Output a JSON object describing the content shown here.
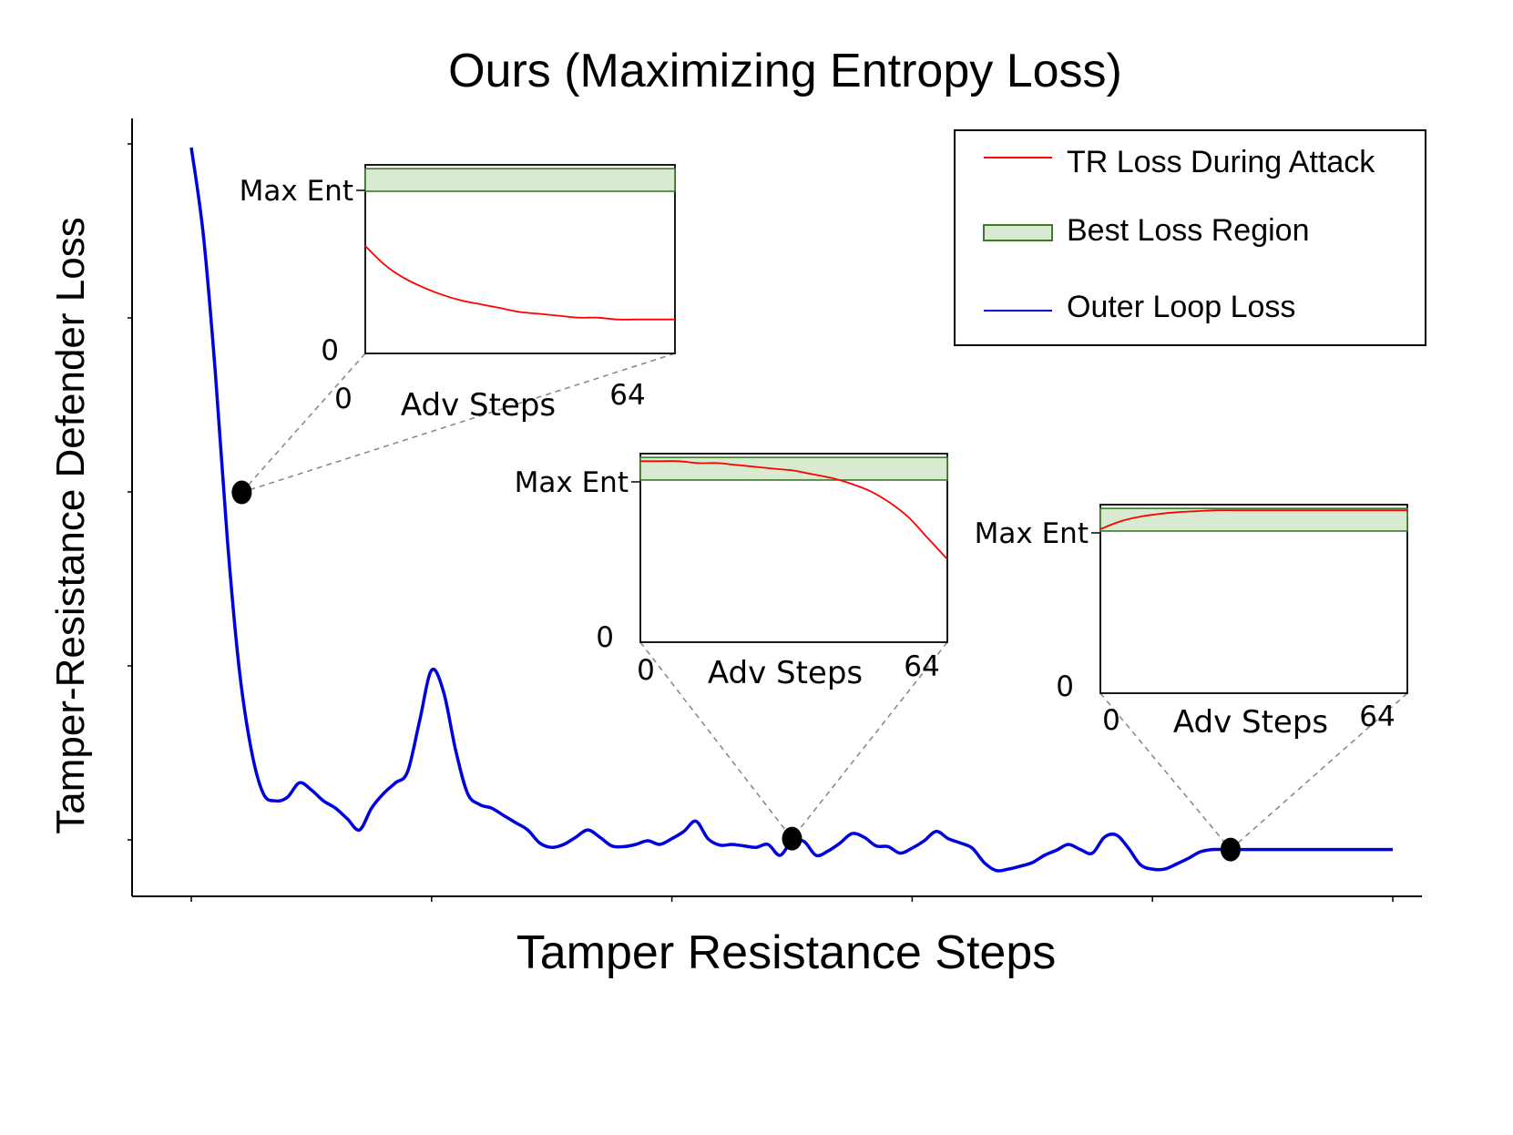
{
  "chart_data": {
    "type": "line",
    "title": "Ours (Maximizing Entropy Loss)",
    "xlabel": "Tamper Resistance Steps",
    "ylabel": "Tamper-Resistance Defender Loss",
    "grid": false,
    "legend_position": "top-right",
    "x_tick_count": 6,
    "y_tick_count": 5,
    "xlim": [
      0,
      100
    ],
    "ylim": [
      0,
      100
    ],
    "legend": [
      {
        "label": "TR Loss During Attack",
        "kind": "line",
        "color": "#ff0000"
      },
      {
        "label": "Best Loss Region",
        "kind": "band",
        "color": "#d8ead0",
        "border": "#3d7a2b"
      },
      {
        "label": "Outer Loop Loss",
        "kind": "line",
        "color": "#0000dd"
      }
    ],
    "series": [
      {
        "name": "Outer Loop Loss",
        "color": "#0000dd",
        "x": [
          0,
          1,
          2,
          3,
          4,
          5,
          6,
          7,
          8,
          9,
          10,
          11,
          12,
          13,
          14,
          15,
          16,
          17,
          18,
          19,
          20,
          21,
          22,
          23,
          24,
          25,
          26,
          27,
          28,
          29,
          30,
          31,
          32,
          33,
          34,
          35,
          36,
          37,
          38,
          39,
          40,
          41,
          42,
          43,
          44,
          45,
          46,
          47,
          48,
          49,
          50,
          51,
          52,
          53,
          54,
          55,
          56,
          57,
          58,
          59,
          60,
          61,
          62,
          63,
          64,
          65,
          66,
          67,
          68,
          69,
          70,
          71,
          72,
          73,
          74,
          75,
          76,
          77,
          78,
          79,
          80,
          81,
          82,
          83,
          84,
          85,
          86,
          87,
          88,
          89,
          90,
          91,
          92,
          93,
          94,
          95,
          96,
          97,
          98,
          99,
          100
        ],
        "y": [
          97,
          85,
          66,
          43,
          25,
          14,
          8,
          7,
          7.5,
          9.5,
          8.5,
          7,
          6,
          4.5,
          3,
          6,
          8,
          9.5,
          11,
          18,
          25,
          22,
          14,
          8,
          6.5,
          6,
          5,
          4,
          3,
          1.2,
          0.6,
          1,
          2,
          3,
          2,
          0.8,
          0.7,
          1,
          1.5,
          1,
          1.8,
          2.8,
          4.2,
          1.8,
          0.9,
          1,
          0.8,
          0.6,
          1,
          -0.5,
          1.5,
          1.4,
          -0.5,
          0.1,
          1.2,
          2.5,
          2,
          0.8,
          0.7,
          -0.2,
          0.5,
          1.5,
          2.8,
          1.8,
          1.2,
          0.5,
          -1.5,
          -2.6,
          -2.4,
          -2,
          -1.5,
          -0.5,
          0.2,
          1,
          0.3,
          -0.2,
          2,
          2.3,
          0.5,
          -1.8,
          -2.4,
          -2.4,
          -1.7,
          -0.9,
          0,
          0.3,
          0.3,
          0.3,
          0.3,
          0.3,
          0.3,
          0.3,
          0.3,
          0.3,
          0.3,
          0.3,
          0.3,
          0.3,
          0.3,
          0.3,
          0.3
        ]
      }
    ],
    "markers": [
      {
        "x": 4.2,
        "y": 49.5
      },
      {
        "x": 50,
        "y": 1.8
      },
      {
        "x": 86.5,
        "y": 0.3
      }
    ],
    "insets": [
      {
        "y_max_label": "Max Ent",
        "y_zero_label": "0",
        "x_label": "Adv Steps",
        "x_ticks": [
          "0",
          "64"
        ],
        "x_range": [
          0,
          64
        ],
        "band": [
          0.86,
          0.98
        ],
        "tr_loss": [
          0.57,
          0.47,
          0.4,
          0.35,
          0.31,
          0.28,
          0.26,
          0.24,
          0.22,
          0.21,
          0.2,
          0.19,
          0.19,
          0.18,
          0.18,
          0.18,
          0.18
        ]
      },
      {
        "y_max_label": "Max Ent",
        "y_zero_label": "0",
        "x_label": "Adv Steps",
        "x_ticks": [
          "0",
          "64"
        ],
        "x_range": [
          0,
          64
        ],
        "band": [
          0.86,
          0.98
        ],
        "tr_loss": [
          0.96,
          0.96,
          0.96,
          0.95,
          0.95,
          0.94,
          0.93,
          0.92,
          0.91,
          0.89,
          0.87,
          0.84,
          0.8,
          0.74,
          0.66,
          0.55,
          0.44
        ]
      },
      {
        "y_max_label": "Max Ent",
        "y_zero_label": "0",
        "x_label": "Adv Steps",
        "x_ticks": [
          "0",
          "64"
        ],
        "x_range": [
          0,
          64
        ],
        "band": [
          0.86,
          0.98
        ],
        "tr_loss": [
          0.87,
          0.91,
          0.935,
          0.95,
          0.96,
          0.965,
          0.97,
          0.97,
          0.97,
          0.97,
          0.97,
          0.97,
          0.97,
          0.97,
          0.97,
          0.97,
          0.97
        ]
      }
    ]
  }
}
